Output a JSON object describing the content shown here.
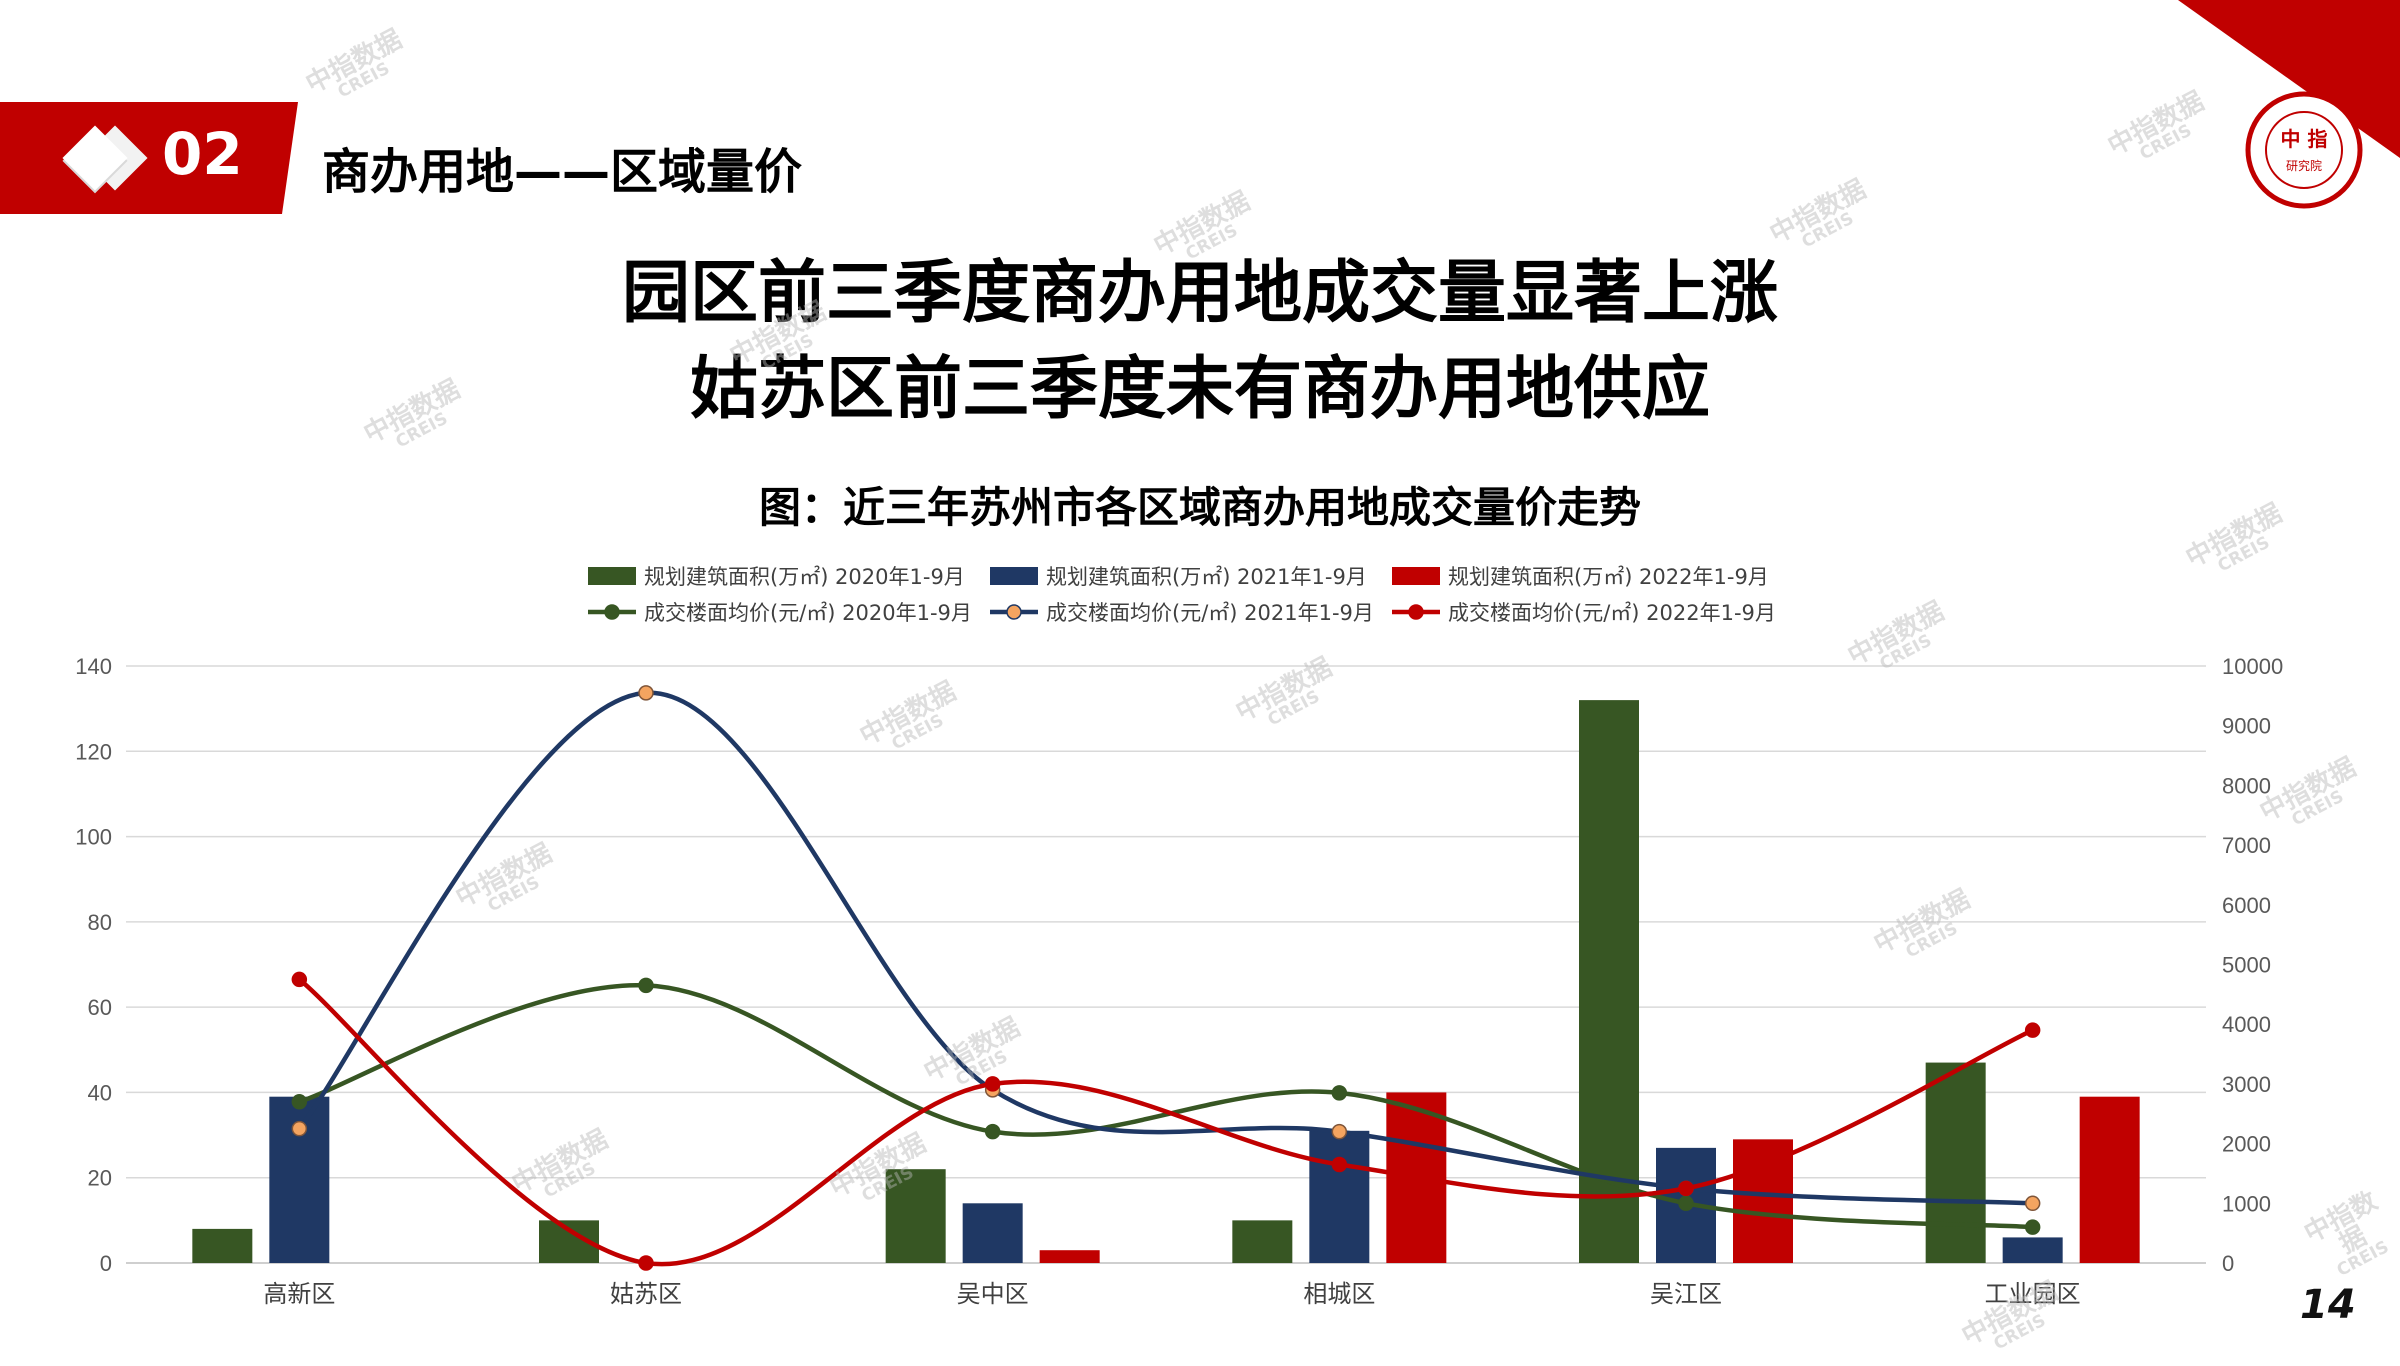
{
  "header": {
    "section_number": "02",
    "section_title": "商办用地——区域量价"
  },
  "logo": {
    "text": "CHINA INDEX ACADEMY 中指 研究院"
  },
  "headline": {
    "line1": "园区前三季度商办用地成交量显著上涨",
    "line2": "姑苏区前三季度未有商办用地供应"
  },
  "chart_title": "图：近三年苏州市各区域商办用地成交量价走势",
  "page_number": "14",
  "watermark": {
    "line1": "中指数据",
    "line2": "CREIS"
  },
  "colors": {
    "accent_red": "#c00000",
    "series_2020": "#375623",
    "series_2021": "#1f3864",
    "series_2022": "#c00000",
    "marker_2021_price": "#f4a460"
  },
  "chart_data": {
    "type": "bar",
    "categories": [
      "高新区",
      "姑苏区",
      "吴中区",
      "相城区",
      "吴江区",
      "工业园区"
    ],
    "series": [
      {
        "name": "规划建筑面积(万㎡) 2020年1-9月",
        "kind": "bar",
        "axis": "left",
        "values": [
          8,
          10,
          22,
          10,
          132,
          47
        ]
      },
      {
        "name": "规划建筑面积(万㎡) 2021年1-9月",
        "kind": "bar",
        "axis": "left",
        "values": [
          39,
          0,
          14,
          31,
          27,
          6
        ]
      },
      {
        "name": "规划建筑面积(万㎡) 2022年1-9月",
        "kind": "bar",
        "axis": "left",
        "values": [
          0,
          0,
          3,
          40,
          29,
          39
        ]
      },
      {
        "name": "成交楼面均价(元/㎡) 2020年1-9月",
        "kind": "line",
        "axis": "right",
        "values": [
          2700,
          4650,
          2200,
          2850,
          1000,
          600
        ]
      },
      {
        "name": "成交楼面均价(元/㎡) 2021年1-9月",
        "kind": "line",
        "axis": "right",
        "values": [
          2250,
          9550,
          2900,
          2200,
          1250,
          1000
        ]
      },
      {
        "name": "成交楼面均价(元/㎡) 2022年1-9月",
        "kind": "line",
        "axis": "right",
        "values": [
          4750,
          0,
          3000,
          1650,
          1250,
          3900
        ]
      }
    ],
    "left_axis": {
      "ylim": [
        0,
        140
      ],
      "ticks": [
        0,
        20,
        40,
        60,
        80,
        100,
        120,
        140
      ]
    },
    "right_axis": {
      "ylim": [
        0,
        10000
      ],
      "ticks": [
        0,
        1000,
        2000,
        3000,
        4000,
        5000,
        6000,
        7000,
        8000,
        9000,
        10000
      ]
    },
    "grid": true,
    "legend_position": "top"
  }
}
